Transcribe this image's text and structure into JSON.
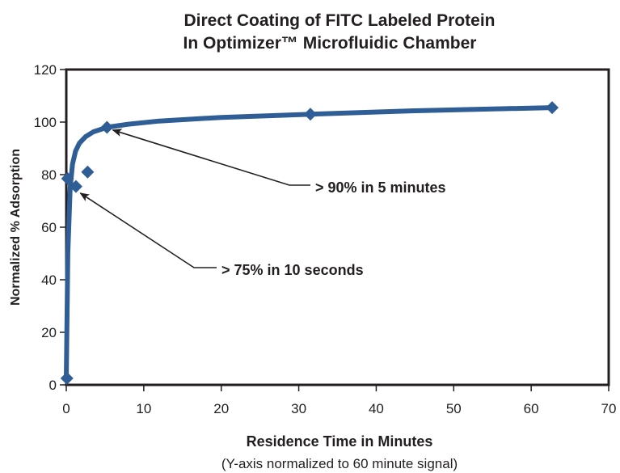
{
  "chart_data": {
    "type": "line",
    "title_lines": [
      "Direct Coating of FITC Labeled Protein",
      "In Optimizer™ Microfluidic Chamber"
    ],
    "xlabel": "Residence Time in Minutes",
    "ylabel": "Normalized % Adsorption",
    "note": "(Y-axis normalized to 60 minute signal)",
    "xlim": [
      0,
      70
    ],
    "ylim": [
      0,
      120
    ],
    "x_ticks": [
      0,
      10,
      20,
      30,
      40,
      50,
      60,
      70
    ],
    "y_ticks": [
      0,
      20,
      40,
      60,
      80,
      100,
      120
    ],
    "grid": false,
    "series": [
      {
        "x": [
          0.08,
          0.17,
          1.25,
          2.75,
          5.25,
          31.5,
          62.7
        ],
        "y": [
          2.5,
          78.5,
          75.5,
          81,
          98,
          103,
          105.5
        ]
      }
    ],
    "annotations": [
      {
        "text": "> 90% in 5 minutes",
        "target": [
          6,
          97
        ]
      },
      {
        "text": "> 75% in 10 seconds",
        "target": [
          1.8,
          73
        ]
      }
    ],
    "colors": {
      "series": "#2f5d95",
      "text": "#231f20"
    }
  }
}
